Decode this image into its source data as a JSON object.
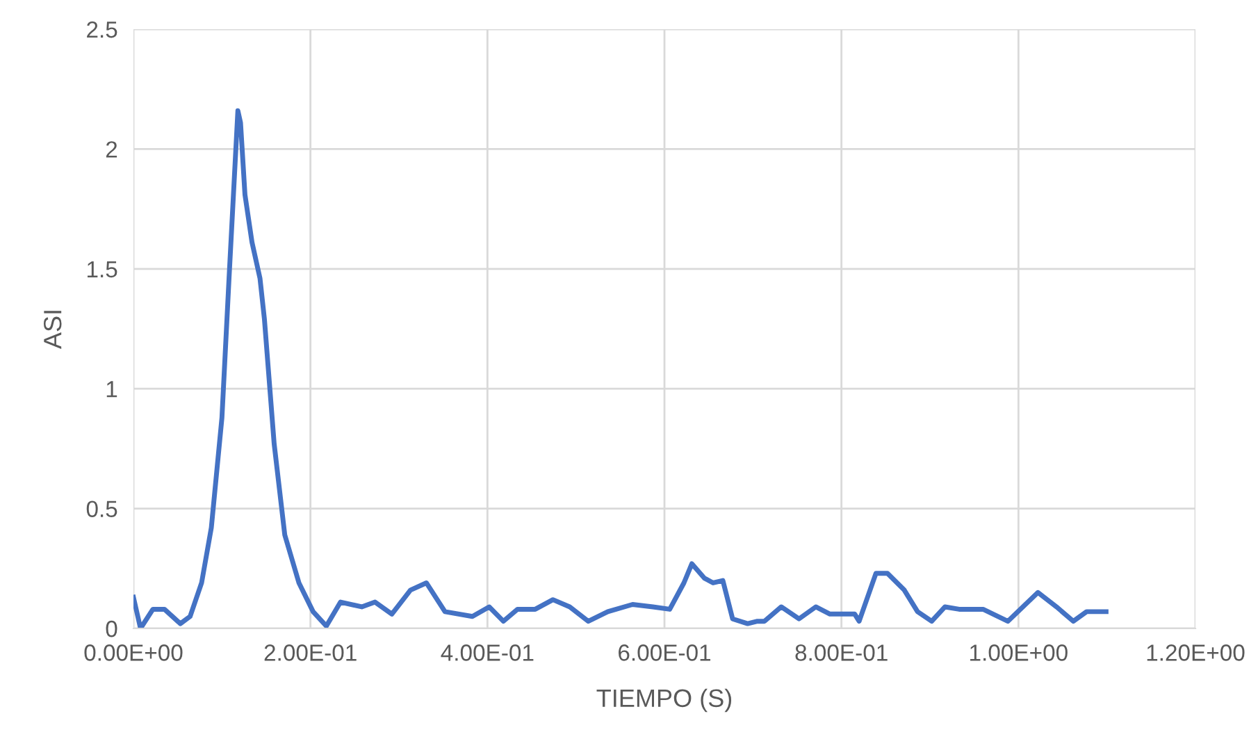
{
  "chart_data": {
    "type": "line",
    "xlabel": "TIEMPO (S)",
    "ylabel": "ASI",
    "x": [
      0,
      0.008,
      0.022,
      0.035,
      0.053,
      0.064,
      0.077,
      0.088,
      0.1,
      0.108,
      0.113,
      0.118,
      0.121,
      0.126,
      0.134,
      0.143,
      0.148,
      0.159,
      0.171,
      0.187,
      0.203,
      0.218,
      0.234,
      0.258,
      0.273,
      0.292,
      0.313,
      0.331,
      0.352,
      0.383,
      0.402,
      0.418,
      0.434,
      0.454,
      0.474,
      0.493,
      0.514,
      0.536,
      0.564,
      0.587,
      0.606,
      0.622,
      0.631,
      0.645,
      0.655,
      0.666,
      0.677,
      0.694,
      0.705,
      0.713,
      0.732,
      0.752,
      0.771,
      0.787,
      0.815,
      0.82,
      0.839,
      0.852,
      0.871,
      0.886,
      0.902,
      0.917,
      0.933,
      0.96,
      0.988,
      1.022,
      1.043,
      1.062,
      1.077,
      1.099
    ],
    "series": [
      {
        "color": "#4472c4",
        "values": [
          0.13,
          0,
          0.08,
          0.08,
          0.02,
          0.05,
          0.19,
          0.42,
          0.88,
          1.46,
          1.81,
          2.16,
          2.11,
          1.81,
          1.61,
          1.46,
          1.29,
          0.77,
          0.39,
          0.19,
          0.07,
          0.01,
          0.11,
          0.09,
          0.11,
          0.06,
          0.16,
          0.19,
          0.07,
          0.05,
          0.09,
          0.03,
          0.08,
          0.08,
          0.12,
          0.09,
          0.03,
          0.07,
          0.1,
          0.09,
          0.08,
          0.19,
          0.27,
          0.21,
          0.19,
          0.2,
          0.04,
          0.02,
          0.03,
          0.03,
          0.09,
          0.04,
          0.09,
          0.06,
          0.06,
          0.03,
          0.23,
          0.23,
          0.16,
          0.07,
          0.03,
          0.09,
          0.08,
          0.08,
          0.03,
          0.15,
          0.09,
          0.03,
          0.07,
          0.07
        ]
      }
    ],
    "xlim": [
      0,
      1.2
    ],
    "xticks": [
      {
        "value": 0,
        "label": "0.00E+00"
      },
      {
        "value": 0.2,
        "label": "2.00E-01"
      },
      {
        "value": 0.4,
        "label": "4.00E-01"
      },
      {
        "value": 0.6,
        "label": "6.00E-01"
      },
      {
        "value": 0.8,
        "label": "8.00E-01"
      },
      {
        "value": 1.0,
        "label": "1.00E+00"
      },
      {
        "value": 1.2,
        "label": "1.20E+00"
      }
    ],
    "ylim": [
      0,
      2.5
    ],
    "yticks": [
      0,
      0.5,
      1,
      1.5,
      2,
      2.5
    ],
    "grid": true,
    "line_style": "solid",
    "marker": "none"
  }
}
